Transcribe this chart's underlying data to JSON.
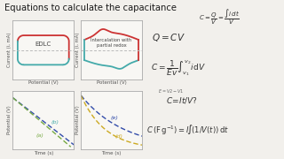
{
  "title": "Equations to calculate the capacitance",
  "title_color": "#1a1a1a",
  "title_underline_color": "#e8a020",
  "bg_color": "#f2f0ec",
  "panel_bg": "#f8f7f4",
  "edlc_label": "EDLC",
  "intercalation_label": "Intercalation with\npartial redox",
  "xlabel_cv": "Potential (V)",
  "ylabel_cv": "Current (i, mA)",
  "xlabel_gcd": "Time (s)",
  "ylabel_gcd": "Potential (V)",
  "curve_color_red": "#cc3333",
  "curve_color_cyan": "#44aaaa",
  "curve_color_blue_dark": "#334daa",
  "curve_color_green": "#77aa44",
  "curve_color_yellow": "#ccaa22",
  "axis_color": "#999999",
  "dashed_color": "#bbbbbb",
  "text_color": "#333333",
  "note_color": "#666666",
  "panel_border": "#aaaaaa"
}
